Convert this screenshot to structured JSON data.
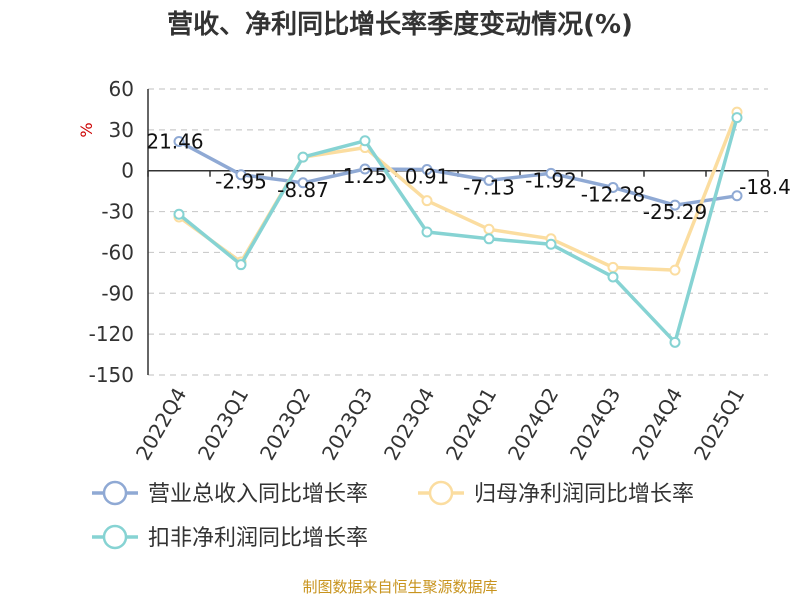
{
  "chart_data": {
    "type": "line",
    "title": "营收、净利同比增长率季度变动情况(%)",
    "ylabel": "%",
    "xlabel": "",
    "categories": [
      "2022Q4",
      "2023Q1",
      "2023Q2",
      "2023Q3",
      "2023Q4",
      "2024Q1",
      "2024Q2",
      "2024Q3",
      "2024Q4",
      "2025Q1"
    ],
    "ylim": [
      -150,
      60
    ],
    "yticks": [
      "60",
      "30",
      "0",
      "-30",
      "-60",
      "-90",
      "-120",
      "-150"
    ],
    "grid": "horizontal-dashed",
    "legend_position": "bottom",
    "series": [
      {
        "name": "营业总收入同比增长率",
        "color": "#8fa9d4",
        "values": [
          21.46,
          -2.95,
          -8.87,
          1.25,
          0.91,
          -7.13,
          -1.92,
          -12.28,
          -25.29,
          -18.4
        ],
        "labels": [
          "21.46",
          "-2.95",
          "-8.87",
          "1.25",
          "0.91",
          "-7.13",
          "-1.92",
          "-12.28",
          "-25.29",
          "-18.4"
        ]
      },
      {
        "name": "归母净利润同比增长率",
        "color": "#fbdda0",
        "values": [
          -34,
          -67,
          10,
          17,
          -22,
          -43,
          -50,
          -71,
          -73,
          43
        ]
      },
      {
        "name": "扣非净利润同比增长率",
        "color": "#86d3d3",
        "values": [
          -32,
          -69,
          10,
          22,
          -45,
          -50,
          -54,
          -78,
          -126,
          39
        ]
      }
    ]
  },
  "source_text": "制图数据来自恒生聚源数据库",
  "colors": {
    "axis": "#333333",
    "grid": "#cccccc",
    "unit": "#cc0000",
    "source": "#c8941e"
  }
}
